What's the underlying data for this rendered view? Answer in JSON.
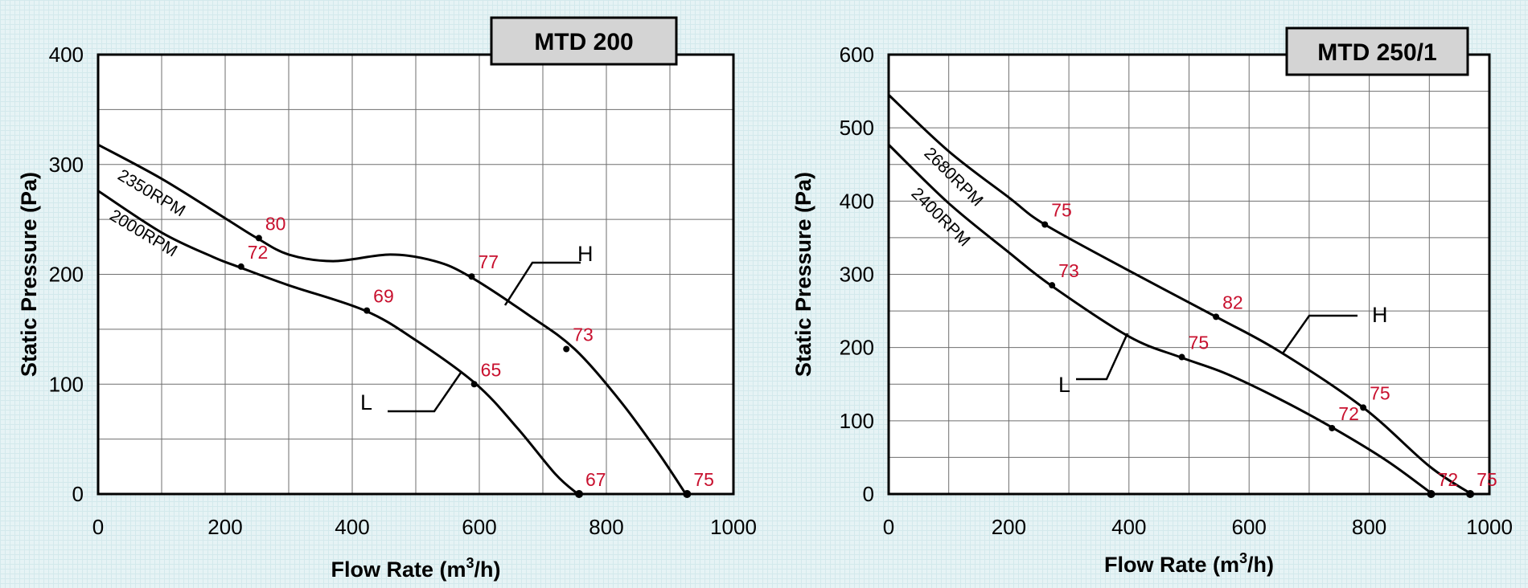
{
  "chart_data": [
    {
      "type": "line",
      "title": "MTD 200",
      "xlabel": "Flow Rate (m",
      "xlabel_sup": "3",
      "xlabel_end": "/h)",
      "ylabel": "Static Pressure (Pa)",
      "xlim": [
        0,
        1000
      ],
      "ylim": [
        0,
        400
      ],
      "xticks": [
        "0",
        "200",
        "400",
        "600",
        "800",
        "1000"
      ],
      "yticks": [
        "0",
        "100",
        "200",
        "300",
        "400"
      ],
      "grid": true,
      "series": [
        {
          "name": "2350RPM",
          "mode": "H",
          "points": [
            [
              0,
              318
            ],
            [
              100,
              287
            ],
            [
              200,
              251
            ],
            [
              250,
              233
            ],
            [
              300,
              218
            ],
            [
              370,
              212
            ],
            [
              460,
              218
            ],
            [
              530,
              212
            ],
            [
              585,
              198
            ],
            [
              680,
              162
            ],
            [
              750,
              132
            ],
            [
              820,
              86
            ],
            [
              880,
              39
            ],
            [
              925,
              0
            ]
          ],
          "markers": [
            {
              "x": 253,
              "y": 233,
              "label": "80"
            },
            {
              "x": 588,
              "y": 198,
              "label": "77"
            },
            {
              "x": 737,
              "y": 132,
              "label": "73"
            },
            {
              "x": 927,
              "y": 0,
              "label": "75"
            }
          ]
        },
        {
          "name": "2000RPM",
          "mode": "L",
          "points": [
            [
              0,
              276
            ],
            [
              100,
              238
            ],
            [
              180,
              216
            ],
            [
              220,
              207
            ],
            [
              300,
              190
            ],
            [
              420,
              167
            ],
            [
              500,
              140
            ],
            [
              595,
              100
            ],
            [
              660,
              60
            ],
            [
              720,
              18
            ],
            [
              755,
              0
            ]
          ],
          "markers": [
            {
              "x": 225,
              "y": 207,
              "label": "72"
            },
            {
              "x": 423,
              "y": 167,
              "label": "69"
            },
            {
              "x": 592,
              "y": 100,
              "label": "65"
            },
            {
              "x": 757,
              "y": 0,
              "label": "67"
            }
          ]
        }
      ]
    },
    {
      "type": "line",
      "title": "MTD 250/1",
      "xlabel": "Flow Rate (m",
      "xlabel_sup": "3",
      "xlabel_end": "/h)",
      "ylabel": "Static Pressure (Pa)",
      "xlim": [
        0,
        1000
      ],
      "ylim": [
        0,
        600
      ],
      "xticks": [
        "0",
        "200",
        "400",
        "600",
        "800",
        "1000"
      ],
      "yticks": [
        "0",
        "100",
        "200",
        "300",
        "400",
        "500",
        "600"
      ],
      "grid": true,
      "series": [
        {
          "name": "2680RPM",
          "mode": "H",
          "points": [
            [
              0,
              545
            ],
            [
              100,
              468
            ],
            [
              200,
              405
            ],
            [
              260,
              368
            ],
            [
              400,
              305
            ],
            [
              545,
              242
            ],
            [
              650,
              195
            ],
            [
              790,
              118
            ],
            [
              900,
              38
            ],
            [
              970,
              0
            ]
          ],
          "markers": [
            {
              "x": 260,
              "y": 368,
              "label": "75"
            },
            {
              "x": 545,
              "y": 242,
              "label": "82"
            },
            {
              "x": 790,
              "y": 118,
              "label": "75"
            },
            {
              "x": 968,
              "y": 0,
              "label": "75"
            }
          ]
        },
        {
          "name": "2400RPM",
          "mode": "L",
          "points": [
            [
              0,
              477
            ],
            [
              100,
              397
            ],
            [
              200,
              330
            ],
            [
              270,
              285
            ],
            [
              400,
              215
            ],
            [
              485,
              187
            ],
            [
              560,
              165
            ],
            [
              650,
              130
            ],
            [
              740,
              90
            ],
            [
              830,
              45
            ],
            [
              905,
              0
            ]
          ],
          "markers": [
            {
              "x": 272,
              "y": 285,
              "label": "73"
            },
            {
              "x": 488,
              "y": 187,
              "label": "75"
            },
            {
              "x": 738,
              "y": 90,
              "label": "72"
            },
            {
              "x": 903,
              "y": 0,
              "label": "72"
            }
          ]
        }
      ]
    }
  ]
}
